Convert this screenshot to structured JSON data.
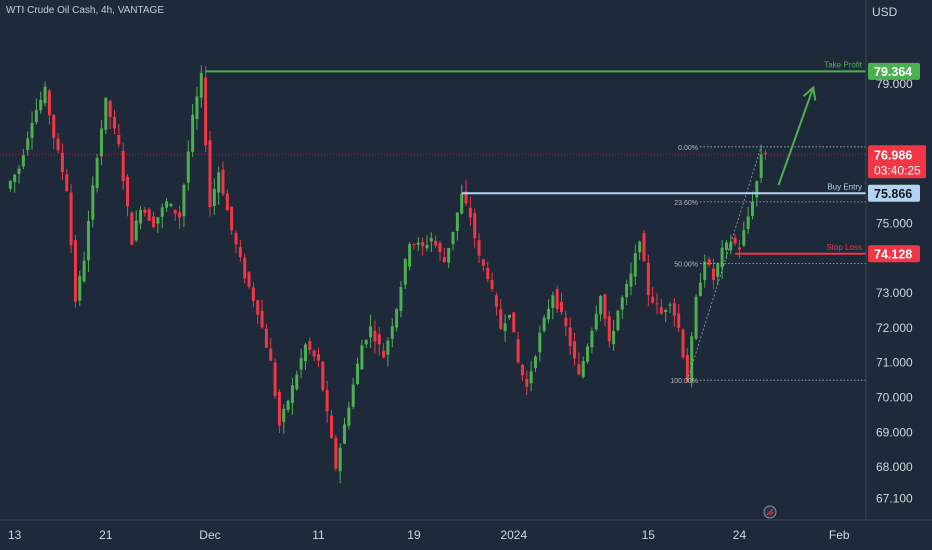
{
  "header": {
    "symbol_title": "WTI Crude Oil Cash, 4h, VANTAGE"
  },
  "axis": {
    "currency": "USD"
  },
  "colors": {
    "background": "#1e2a3a",
    "up": "#4caf50",
    "down": "#f23645",
    "take_profit": "#4caf50",
    "buy_entry": "#b3d4f0",
    "stop_loss": "#f23645",
    "current_price": "#f23645",
    "fib": "#b2b5be",
    "axis_text": "#d1d4dc"
  },
  "chart_data": {
    "type": "candlestick",
    "title": "WTI Crude Oil Cash, 4h, VANTAGE",
    "ylim": [
      66.6,
      81.3
    ],
    "y_ticks": [
      {
        "value": 67.1,
        "label": "67.100"
      },
      {
        "value": 68.0,
        "label": "68.000"
      },
      {
        "value": 69.0,
        "label": "69.000"
      },
      {
        "value": 70.0,
        "label": "70.000"
      },
      {
        "value": 71.0,
        "label": "71.000"
      },
      {
        "value": 72.0,
        "label": "72.000"
      },
      {
        "value": 73.0,
        "label": "73.000"
      },
      {
        "value": 75.0,
        "label": "75.000"
      },
      {
        "value": 79.0,
        "label": "79.000"
      }
    ],
    "x_ticks": [
      {
        "label": "13",
        "idx": 2
      },
      {
        "label": "21",
        "idx": 23
      },
      {
        "label": "Dec",
        "idx": 47
      },
      {
        "label": "11",
        "idx": 72
      },
      {
        "label": "19",
        "idx": 94
      },
      {
        "label": "2024",
        "idx": 117
      },
      {
        "label": "15",
        "idx": 148
      },
      {
        "label": "24",
        "idx": 169
      },
      {
        "label": "Feb",
        "idx": 192
      }
    ],
    "candle_anchors": [
      [
        0,
        76.0
      ],
      [
        3,
        76.6
      ],
      [
        6,
        78.0
      ],
      [
        9,
        78.8
      ],
      [
        11,
        77.5
      ],
      [
        14,
        76.0
      ],
      [
        16,
        72.8
      ],
      [
        18,
        74.0
      ],
      [
        21,
        77.0
      ],
      [
        23,
        78.5
      ],
      [
        26,
        77.2
      ],
      [
        29,
        74.5
      ],
      [
        31,
        75.5
      ],
      [
        34,
        75.0
      ],
      [
        37,
        75.6
      ],
      [
        40,
        75.2
      ],
      [
        43,
        78.0
      ],
      [
        45,
        79.2
      ],
      [
        47,
        75.5
      ],
      [
        49,
        76.5
      ],
      [
        52,
        74.8
      ],
      [
        55,
        73.5
      ],
      [
        58,
        72.5
      ],
      [
        61,
        71.0
      ],
      [
        63,
        69.2
      ],
      [
        66,
        70.3
      ],
      [
        69,
        71.5
      ],
      [
        72,
        71.0
      ],
      [
        74,
        69.5
      ],
      [
        76,
        68.0
      ],
      [
        79,
        69.8
      ],
      [
        82,
        71.5
      ],
      [
        84,
        72.0
      ],
      [
        87,
        71.2
      ],
      [
        90,
        72.6
      ],
      [
        93,
        74.5
      ],
      [
        96,
        74.3
      ],
      [
        98,
        74.6
      ],
      [
        101,
        73.9
      ],
      [
        103,
        74.8
      ],
      [
        105,
        75.8
      ],
      [
        107,
        75.2
      ],
      [
        109,
        74.0
      ],
      [
        111,
        73.5
      ],
      [
        114,
        72.0
      ],
      [
        116,
        72.5
      ],
      [
        118,
        71.0
      ],
      [
        120,
        70.3
      ],
      [
        123,
        71.8
      ],
      [
        126,
        73.0
      ],
      [
        129,
        72.0
      ],
      [
        132,
        70.6
      ],
      [
        135,
        72.0
      ],
      [
        137,
        73.0
      ],
      [
        139,
        71.5
      ],
      [
        141,
        72.5
      ],
      [
        144,
        73.5
      ],
      [
        146,
        74.6
      ],
      [
        148,
        73.0
      ],
      [
        151,
        72.4
      ],
      [
        153,
        72.8
      ],
      [
        155,
        72.0
      ],
      [
        157,
        70.5
      ],
      [
        159,
        72.8
      ],
      [
        161,
        74.0
      ],
      [
        163,
        73.4
      ],
      [
        165,
        74.2
      ],
      [
        167,
        74.5
      ],
      [
        169,
        74.3
      ],
      [
        171,
        75.2
      ],
      [
        173,
        76.2
      ],
      [
        174,
        77.0
      ],
      [
        175,
        76.986
      ]
    ],
    "levels": [
      {
        "name": "Take Profit",
        "value": 79.364,
        "label": "79.364",
        "color": "#4caf50",
        "start_idx": 46
      },
      {
        "name": "Buy Entry",
        "value": 75.866,
        "label": "75.866",
        "color": "#b3d4f0",
        "start_idx": 105
      },
      {
        "name": "Stop Loss",
        "value": 74.128,
        "label": "74.128",
        "color": "#f23645",
        "start_idx": 168
      }
    ],
    "current_price": {
      "value": 76.986,
      "label": "76.986",
      "countdown": "03:40:25"
    },
    "fibonacci": {
      "high": 77.2,
      "low": 70.5,
      "start_idx": 153,
      "levels": [
        {
          "ratio": 0.0,
          "label": "0.00%"
        },
        {
          "ratio": 0.236,
          "label": "23.60%"
        },
        {
          "ratio": 0.5,
          "label": "50.00%"
        },
        {
          "ratio": 1.0,
          "label": "100.00%"
        }
      ]
    },
    "arrow": {
      "from_idx": 178,
      "from_value": 76.1,
      "to_idx": 186,
      "to_value": 78.9
    },
    "grid": false,
    "legend": "none"
  }
}
